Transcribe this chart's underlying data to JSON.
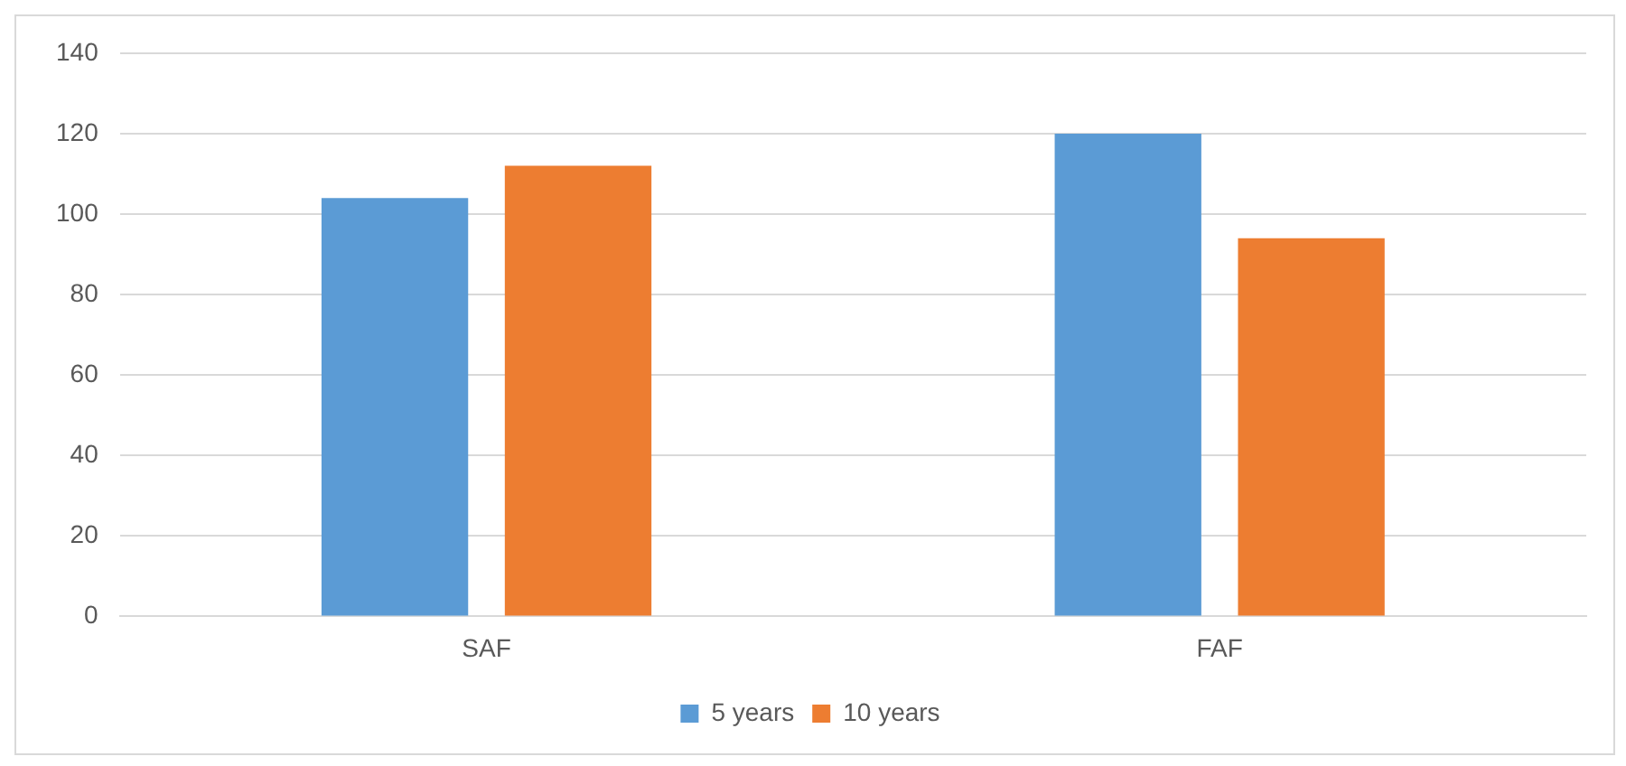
{
  "chart_data": {
    "type": "bar",
    "categories": [
      "SAF",
      "FAF"
    ],
    "series": [
      {
        "name": "5 years",
        "color": "#5b9bd5",
        "values": [
          104,
          120
        ]
      },
      {
        "name": "10 years",
        "color": "#ed7d31",
        "values": [
          112,
          94
        ]
      }
    ],
    "ylim": [
      0,
      140
    ],
    "yticks": [
      0,
      20,
      40,
      60,
      80,
      100,
      120,
      140
    ],
    "grid": "y",
    "legend": "bottom"
  }
}
